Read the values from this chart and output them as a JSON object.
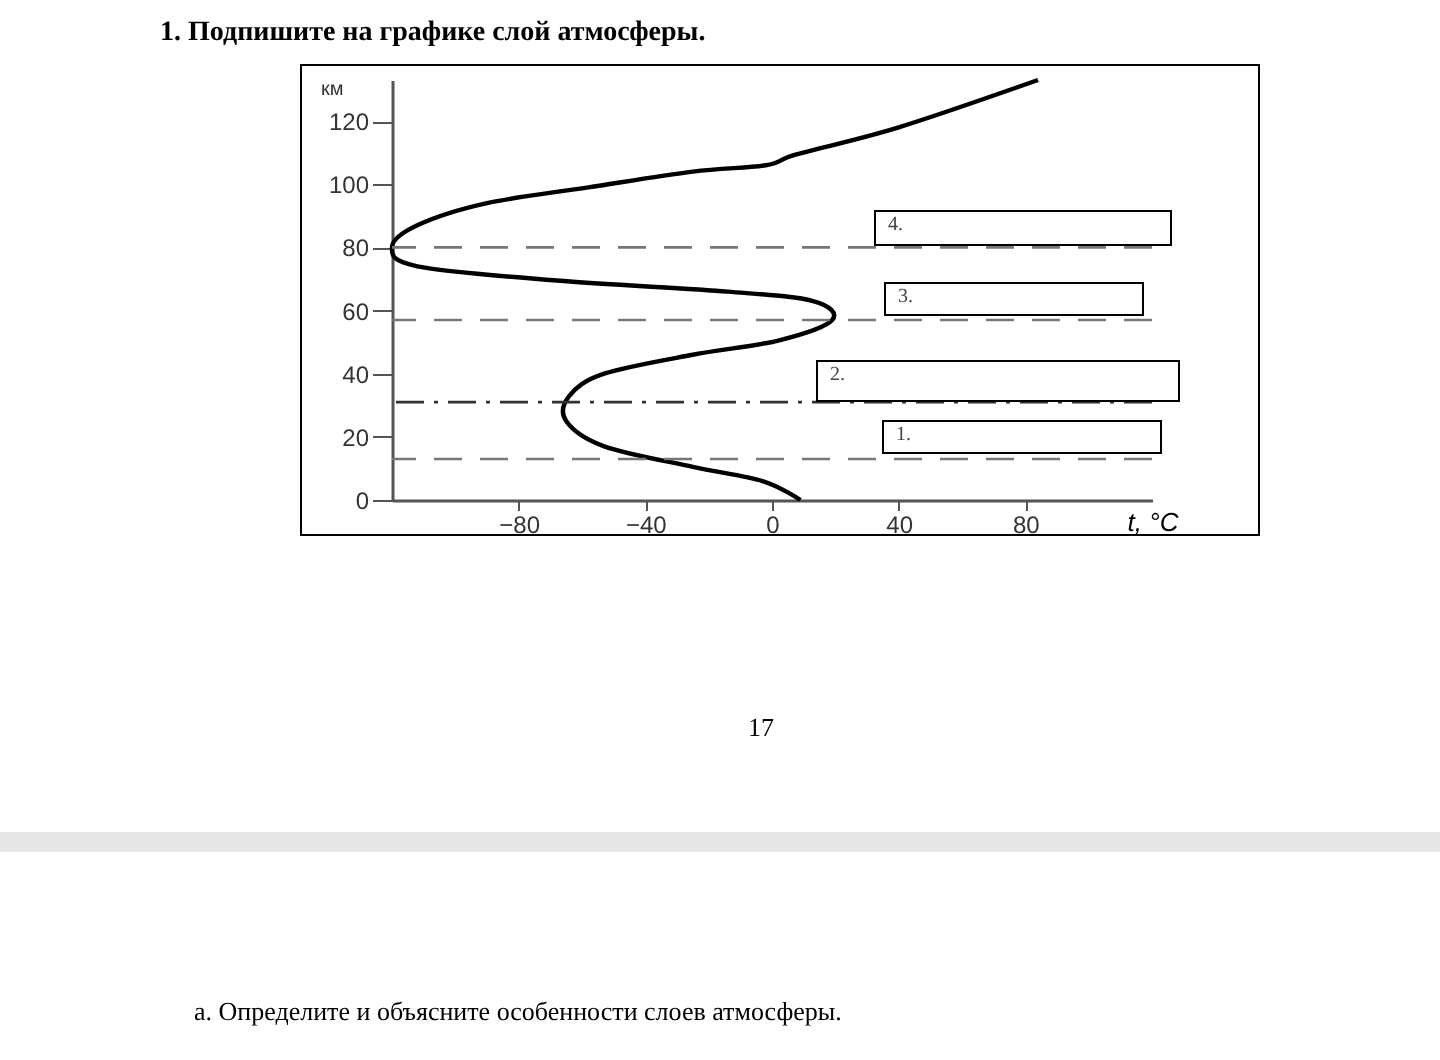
{
  "chart_data": {
    "type": "line",
    "title": "1. Подпишите на графике слой атмосферы.",
    "xlabel": "t, °C",
    "ylabel": "км",
    "x": [
      9,
      -3,
      -25,
      -53,
      -65,
      -64,
      -53,
      -25,
      2,
      19,
      13,
      -14,
      -68,
      -112,
      -120,
      -112,
      -90,
      -58,
      -25,
      -2,
      8,
      40,
      84
    ],
    "values": [
      0,
      6,
      10.5,
      17,
      25,
      33,
      40,
      46,
      50.5,
      57,
      63,
      66,
      69.5,
      74,
      80,
      87,
      94,
      99,
      104,
      106,
      109.5,
      118,
      133
    ],
    "color": "#000000",
    "xlim": [
      -120,
      120
    ],
    "xticks": [
      -80,
      -40,
      0,
      40,
      80
    ],
    "ylim": [
      0,
      133
    ],
    "yticks": [
      0,
      20,
      40,
      60,
      80,
      100,
      120
    ],
    "ref_lines": [
      {
        "axis": "y",
        "value": 13,
        "line_style": "dashed",
        "color": "#777777"
      },
      {
        "axis": "y",
        "value": 31,
        "line_style": "dashdot",
        "color": "#333333"
      },
      {
        "axis": "y",
        "value": 57,
        "line_style": "dashed",
        "color": "#777777"
      },
      {
        "axis": "y",
        "value": 80,
        "line_style": "dashed",
        "color": "#777777"
      }
    ],
    "annotations": [
      "1.",
      "2.",
      "3.",
      "4.",
      "17",
      "а. Определите и объясните особенности слоев атмосферы."
    ],
    "marker": "none",
    "line_style": "solid",
    "grid": false
  }
}
